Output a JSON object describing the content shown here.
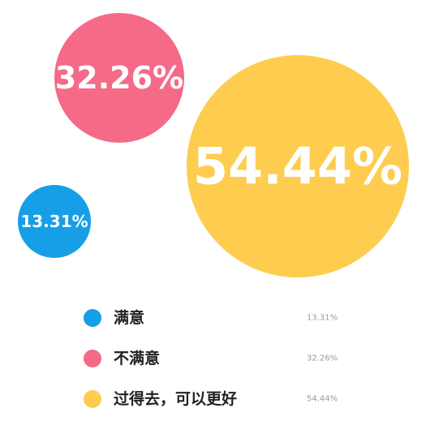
{
  "chart_data": {
    "type": "bubble",
    "title": "",
    "categories": [
      "满意",
      "不满意",
      "过得去，可以更好"
    ],
    "values": [
      13.31,
      32.26,
      54.44
    ],
    "value_labels": [
      "13.31%",
      "32.26%",
      "54.44%"
    ],
    "colors": [
      "#169fe6",
      "#f56a87",
      "#fecd4f"
    ],
    "legend_placement": "bottom",
    "grid": false
  }
}
